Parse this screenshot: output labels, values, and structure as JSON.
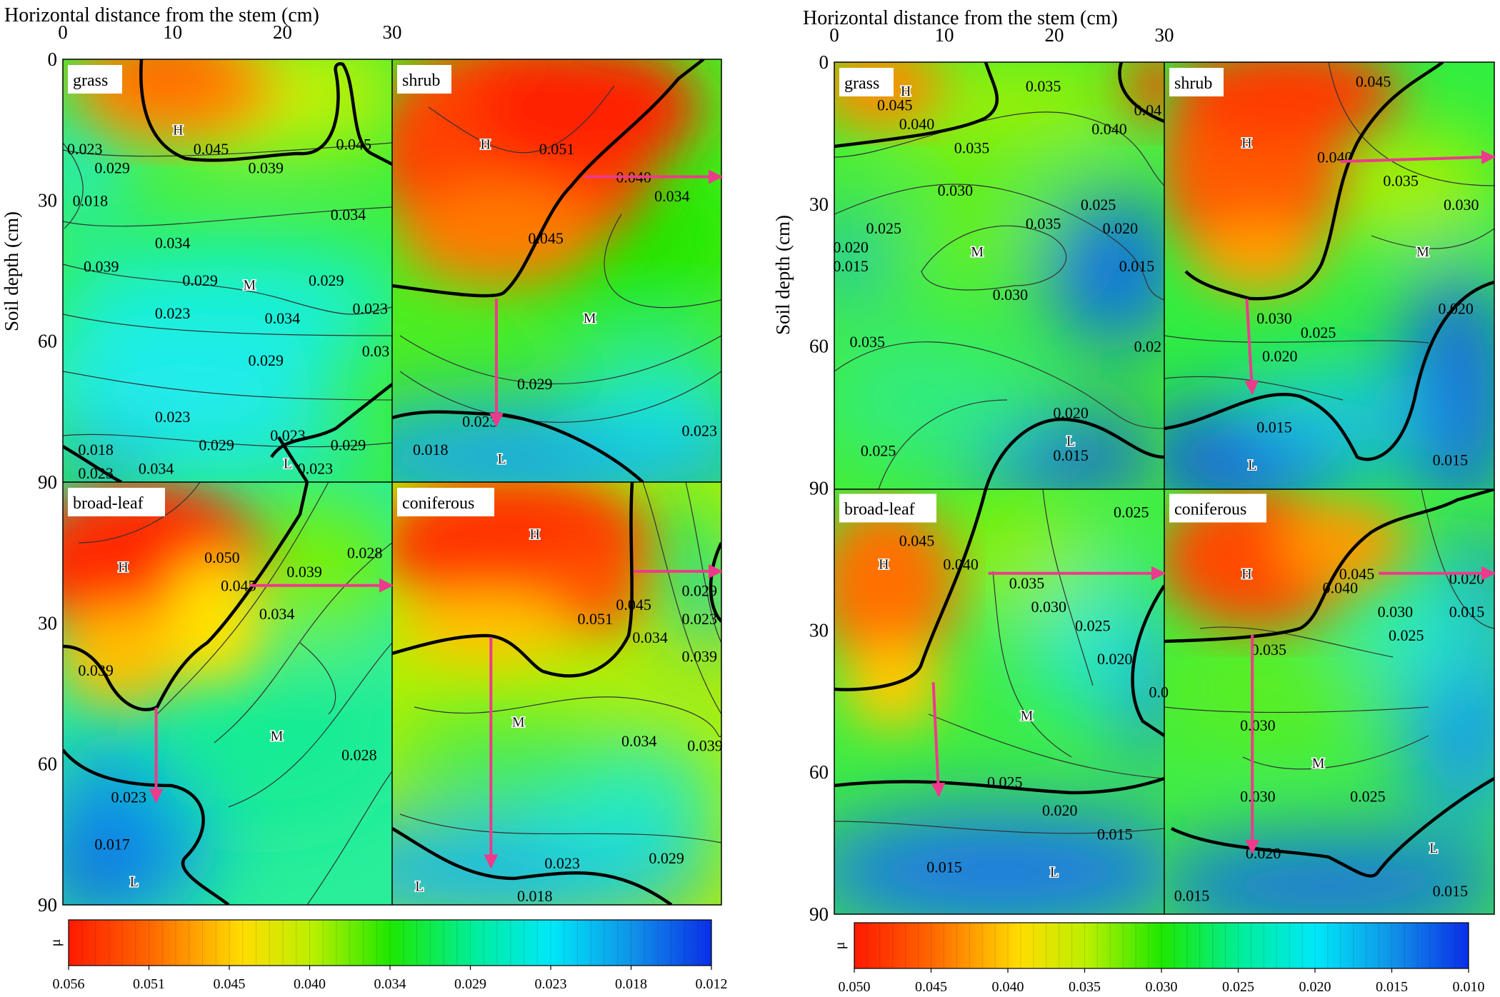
{
  "chart_data": [
    {
      "type": "heatmap",
      "xlabel": "Horizontal distance from the stem (cm)",
      "ylabel": "Soil depth (cm)",
      "x_ticks": [
        "0",
        "10",
        "20",
        "30"
      ],
      "y_ticks": [
        "0",
        "30",
        "60",
        "90"
      ],
      "xlim": [
        0,
        30
      ],
      "ylim": [
        0,
        90
      ],
      "colorbar": {
        "label": "μ",
        "ticks": [
          "0.056",
          "0.051",
          "0.045",
          "0.040",
          "0.034",
          "0.029",
          "0.023",
          "0.018",
          "0.012"
        ],
        "vmax": 0.056,
        "vmin": 0.012
      },
      "panels": [
        {
          "name": "grass",
          "zone_labels": [
            {
              "text": "H",
              "x": 10.5,
              "y": 15
            },
            {
              "text": "M",
              "x": 17,
              "y": 48
            },
            {
              "text": "L",
              "x": 20.5,
              "y": 86
            }
          ],
          "contour_labels": [
            {
              "text": "0.045",
              "x": 13.5,
              "y": 19
            },
            {
              "text": "0.039",
              "x": 18.5,
              "y": 23
            },
            {
              "text": "0.045",
              "x": 26.5,
              "y": 18
            },
            {
              "text": "0.023",
              "x": 2,
              "y": 19
            },
            {
              "text": "0.029",
              "x": 4.5,
              "y": 23
            },
            {
              "text": "0.018",
              "x": 2.5,
              "y": 30
            },
            {
              "text": "0.034",
              "x": 26,
              "y": 33
            },
            {
              "text": "0.034",
              "x": 10,
              "y": 39
            },
            {
              "text": "0.039",
              "x": 3.5,
              "y": 44
            },
            {
              "text": "0.029",
              "x": 12.5,
              "y": 47
            },
            {
              "text": "0.029",
              "x": 24,
              "y": 47
            },
            {
              "text": "0.023",
              "x": 10,
              "y": 54
            },
            {
              "text": "0.034",
              "x": 20,
              "y": 55
            },
            {
              "text": "0.023",
              "x": 28,
              "y": 53
            },
            {
              "text": "0.03",
              "x": 28.5,
              "y": 62
            },
            {
              "text": "0.029",
              "x": 18.5,
              "y": 64
            },
            {
              "text": "0.023",
              "x": 10,
              "y": 76
            },
            {
              "text": "0.023",
              "x": 20.5,
              "y": 80
            },
            {
              "text": "0.018",
              "x": 3,
              "y": 83
            },
            {
              "text": "0.029",
              "x": 14,
              "y": 82
            },
            {
              "text": "0.029",
              "x": 26,
              "y": 82
            },
            {
              "text": "0.023",
              "x": 3,
              "y": 88
            },
            {
              "text": "0.034",
              "x": 8.5,
              "y": 87
            },
            {
              "text": "0.023",
              "x": 23,
              "y": 87
            }
          ]
        },
        {
          "name": "shrub",
          "zone_labels": [
            {
              "text": "H",
              "x": 8.5,
              "y": 18
            },
            {
              "text": "M",
              "x": 18,
              "y": 55
            },
            {
              "text": "L",
              "x": 10,
              "y": 85
            }
          ],
          "contour_labels": [
            {
              "text": "0.051",
              "x": 15,
              "y": 19
            },
            {
              "text": "0.040",
              "x": 22,
              "y": 25
            },
            {
              "text": "0.034",
              "x": 25.5,
              "y": 29
            },
            {
              "text": "0.045",
              "x": 14,
              "y": 38
            },
            {
              "text": "0.029",
              "x": 13,
              "y": 69
            },
            {
              "text": "0.023",
              "x": 8,
              "y": 77
            },
            {
              "text": "0.023",
              "x": 28,
              "y": 79
            },
            {
              "text": "0.018",
              "x": 3.5,
              "y": 83
            }
          ],
          "arrows": [
            {
              "from": [
                17.5,
                25
              ],
              "to": [
                30,
                25
              ]
            },
            {
              "from": [
                9.5,
                51
              ],
              "to": [
                9.5,
                78
              ]
            }
          ]
        },
        {
          "name": "broad-leaf",
          "zone_labels": [
            {
              "text": "H",
              "x": 5.5,
              "y": 18
            },
            {
              "text": "M",
              "x": 19.5,
              "y": 54
            },
            {
              "text": "L",
              "x": 6.5,
              "y": 85
            }
          ],
          "contour_labels": [
            {
              "text": "0.050",
              "x": 14.5,
              "y": 16
            },
            {
              "text": "0.045",
              "x": 16,
              "y": 22
            },
            {
              "text": "0.039",
              "x": 22,
              "y": 19
            },
            {
              "text": "0.028",
              "x": 27.5,
              "y": 15
            },
            {
              "text": "0.034",
              "x": 19.5,
              "y": 28
            },
            {
              "text": "0.039",
              "x": 3,
              "y": 40
            },
            {
              "text": "0.028",
              "x": 27,
              "y": 58
            },
            {
              "text": "0.023",
              "x": 6,
              "y": 67
            },
            {
              "text": "0.017",
              "x": 4.5,
              "y": 77
            }
          ],
          "arrows": [
            {
              "from": [
                17,
                22
              ],
              "to": [
                30,
                22
              ]
            },
            {
              "from": [
                8.5,
                48
              ],
              "to": [
                8.5,
                68
              ]
            }
          ]
        },
        {
          "name": "coniferous",
          "zone_labels": [
            {
              "text": "H",
              "x": 13,
              "y": 11
            },
            {
              "text": "M",
              "x": 11.5,
              "y": 51
            },
            {
              "text": "L",
              "x": 2.5,
              "y": 86
            }
          ],
          "contour_labels": [
            {
              "text": "0.045",
              "x": 22,
              "y": 26
            },
            {
              "text": "0.029",
              "x": 28,
              "y": 23
            },
            {
              "text": "0.051",
              "x": 18.5,
              "y": 29
            },
            {
              "text": "0.023",
              "x": 28,
              "y": 29
            },
            {
              "text": "0.034",
              "x": 23.5,
              "y": 33
            },
            {
              "text": "0.039",
              "x": 28,
              "y": 37
            },
            {
              "text": "0.034",
              "x": 22.5,
              "y": 55
            },
            {
              "text": "0.039",
              "x": 28.5,
              "y": 56
            },
            {
              "text": "0.023",
              "x": 15.5,
              "y": 81
            },
            {
              "text": "0.029",
              "x": 25,
              "y": 80
            },
            {
              "text": "0.018",
              "x": 13,
              "y": 88
            }
          ],
          "arrows": [
            {
              "from": [
                22,
                19
              ],
              "to": [
                30,
                19
              ]
            },
            {
              "from": [
                9,
                33
              ],
              "to": [
                9,
                82
              ]
            }
          ]
        }
      ]
    },
    {
      "type": "heatmap",
      "xlabel": "Horizontal distance from the stem (cm)",
      "ylabel": "Soil depth (cm)",
      "x_ticks": [
        "0",
        "10",
        "20",
        "30"
      ],
      "y_ticks": [
        "0",
        "30",
        "60",
        "90"
      ],
      "xlim": [
        0,
        30
      ],
      "ylim": [
        0,
        90
      ],
      "colorbar": {
        "label": "μ",
        "ticks": [
          "0.050",
          "0.045",
          "0.040",
          "0.035",
          "0.030",
          "0.025",
          "0.020",
          "0.015",
          "0.010"
        ],
        "vmax": 0.05,
        "vmin": 0.01
      },
      "panels": [
        {
          "name": "grass",
          "zone_labels": [
            {
              "text": "H",
              "x": 6.5,
              "y": 6
            },
            {
              "text": "M",
              "x": 13,
              "y": 40
            },
            {
              "text": "L",
              "x": 21.5,
              "y": 80
            }
          ],
          "contour_labels": [
            {
              "text": "0.045",
              "x": 5.5,
              "y": 9
            },
            {
              "text": "0.035",
              "x": 19,
              "y": 5
            },
            {
              "text": "0.04",
              "x": 28.5,
              "y": 10
            },
            {
              "text": "0.040",
              "x": 7.5,
              "y": 13
            },
            {
              "text": "0.040",
              "x": 25,
              "y": 14
            },
            {
              "text": "0.035",
              "x": 12.5,
              "y": 18
            },
            {
              "text": "0.030",
              "x": 11,
              "y": 27
            },
            {
              "text": "0.025",
              "x": 24,
              "y": 30
            },
            {
              "text": "0.025",
              "x": 4.5,
              "y": 35
            },
            {
              "text": "0.035",
              "x": 19,
              "y": 34
            },
            {
              "text": "0.020",
              "x": 26,
              "y": 35
            },
            {
              "text": "0.020",
              "x": 1.5,
              "y": 39
            },
            {
              "text": "0.015",
              "x": 1.5,
              "y": 43
            },
            {
              "text": "0.015",
              "x": 27.5,
              "y": 43
            },
            {
              "text": "0.030",
              "x": 16,
              "y": 49
            },
            {
              "text": "0.035",
              "x": 3,
              "y": 59
            },
            {
              "text": "0.02",
              "x": 28.5,
              "y": 60
            },
            {
              "text": "0.020",
              "x": 21.5,
              "y": 74
            },
            {
              "text": "0.025",
              "x": 4,
              "y": 82
            },
            {
              "text": "0.015",
              "x": 21.5,
              "y": 83
            }
          ]
        },
        {
          "name": "shrub",
          "zone_labels": [
            {
              "text": "H",
              "x": 7.5,
              "y": 17
            },
            {
              "text": "M",
              "x": 23.5,
              "y": 40
            },
            {
              "text": "L",
              "x": 8,
              "y": 85
            }
          ],
          "contour_labels": [
            {
              "text": "0.045",
              "x": 19,
              "y": 4
            },
            {
              "text": "0.040",
              "x": 15.5,
              "y": 20
            },
            {
              "text": "0.035",
              "x": 21.5,
              "y": 25
            },
            {
              "text": "0.030",
              "x": 27,
              "y": 30
            },
            {
              "text": "0.020",
              "x": 26.5,
              "y": 52
            },
            {
              "text": "0.030",
              "x": 10,
              "y": 54
            },
            {
              "text": "0.025",
              "x": 14,
              "y": 57
            },
            {
              "text": "0.020",
              "x": 10.5,
              "y": 62
            },
            {
              "text": "0.015",
              "x": 10,
              "y": 77
            },
            {
              "text": "0.015",
              "x": 26,
              "y": 84
            }
          ],
          "arrows": [
            {
              "from": [
                16,
                21
              ],
              "to": [
                30,
                20
              ]
            },
            {
              "from": [
                7.5,
                50
              ],
              "to": [
                8,
                70
              ]
            }
          ]
        },
        {
          "name": "broad-leaf",
          "zone_labels": [
            {
              "text": "H",
              "x": 4.5,
              "y": 16
            },
            {
              "text": "M",
              "x": 17.5,
              "y": 48
            },
            {
              "text": "L",
              "x": 20,
              "y": 81
            }
          ],
          "contour_labels": [
            {
              "text": "0.025",
              "x": 27,
              "y": 5
            },
            {
              "text": "0.045",
              "x": 7.5,
              "y": 11
            },
            {
              "text": "0.040",
              "x": 11.5,
              "y": 16
            },
            {
              "text": "0.035",
              "x": 17.5,
              "y": 20
            },
            {
              "text": "0.030",
              "x": 19.5,
              "y": 25
            },
            {
              "text": "0.025",
              "x": 23.5,
              "y": 29
            },
            {
              "text": "0.020",
              "x": 25.5,
              "y": 36
            },
            {
              "text": "0.0",
              "x": 29.5,
              "y": 43
            },
            {
              "text": "0.025",
              "x": 15.5,
              "y": 62
            },
            {
              "text": "0.020",
              "x": 20.5,
              "y": 68
            },
            {
              "text": "0.015",
              "x": 25.5,
              "y": 73
            },
            {
              "text": "0.015",
              "x": 10,
              "y": 80
            }
          ],
          "arrows": [
            {
              "from": [
                14,
                18
              ],
              "to": [
                30,
                18
              ]
            },
            {
              "from": [
                9,
                41
              ],
              "to": [
                9.5,
                65
              ]
            }
          ]
        },
        {
          "name": "coniferous",
          "zone_labels": [
            {
              "text": "H",
              "x": 7.5,
              "y": 18
            },
            {
              "text": "M",
              "x": 14,
              "y": 58
            },
            {
              "text": "L",
              "x": 24.5,
              "y": 76
            }
          ],
          "contour_labels": [
            {
              "text": "0.045",
              "x": 17.5,
              "y": 18
            },
            {
              "text": "0.040",
              "x": 16,
              "y": 21
            },
            {
              "text": "0.020",
              "x": 27.5,
              "y": 19
            },
            {
              "text": "0.030",
              "x": 21,
              "y": 26
            },
            {
              "text": "0.015",
              "x": 27.5,
              "y": 26
            },
            {
              "text": "0.025",
              "x": 22,
              "y": 31
            },
            {
              "text": "0.035",
              "x": 9.5,
              "y": 34
            },
            {
              "text": "0.030",
              "x": 8.5,
              "y": 50
            },
            {
              "text": "0.030",
              "x": 8.5,
              "y": 65
            },
            {
              "text": "0.025",
              "x": 18.5,
              "y": 65
            },
            {
              "text": "0.020",
              "x": 9,
              "y": 77
            },
            {
              "text": "0.015",
              "x": 2.5,
              "y": 86
            },
            {
              "text": "0.015",
              "x": 26,
              "y": 85
            }
          ],
          "arrows": [
            {
              "from": [
                19.5,
                18
              ],
              "to": [
                30,
                18
              ]
            },
            {
              "from": [
                8,
                31
              ],
              "to": [
                8,
                77
              ]
            }
          ]
        }
      ]
    }
  ]
}
